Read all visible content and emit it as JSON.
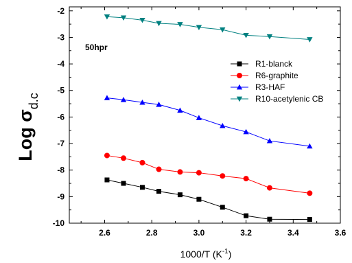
{
  "chart_data": {
    "type": "line",
    "title": "",
    "annotation": "50hpr",
    "xlabel": "1000/T (K",
    "xlabel_sup": "-1",
    "xlabel_close": ")",
    "ylabel": "Log σ",
    "ylabel_sub": "d.c",
    "xlim": [
      2.45,
      3.6
    ],
    "ylim": [
      -10,
      -1.85
    ],
    "x_ticks": [
      2.6,
      2.8,
      3.0,
      3.2,
      3.4,
      3.6
    ],
    "x_tick_labels": [
      "2.6",
      "2.8",
      "3.0",
      "3.2",
      "3.4",
      "3.6"
    ],
    "y_ticks": [
      -10,
      -9,
      -8,
      -7,
      -6,
      -5,
      -4,
      -3,
      -2
    ],
    "y_tick_labels": [
      "-10",
      "-9",
      "-8",
      "-7",
      "-6",
      "-5",
      "-4",
      "-3",
      "-2"
    ],
    "grid": false,
    "legend_position": "right",
    "x": [
      2.61,
      2.68,
      2.76,
      2.83,
      2.92,
      3.0,
      3.1,
      3.2,
      3.3,
      3.47
    ],
    "series": [
      {
        "name": "R1-blanck",
        "color": "#000000",
        "marker": "square",
        "values": [
          -8.37,
          -8.5,
          -8.65,
          -8.8,
          -8.93,
          -9.1,
          -9.4,
          -9.72,
          -9.85,
          -9.86
        ]
      },
      {
        "name": "R6-graphite",
        "color": "#ff0000",
        "marker": "circle",
        "values": [
          -7.45,
          -7.55,
          -7.72,
          -7.97,
          -8.07,
          -8.1,
          -8.22,
          -8.32,
          -8.67,
          -8.87
        ]
      },
      {
        "name": "R3-HAF",
        "color": "#0000ff",
        "marker": "triangle-up",
        "values": [
          -5.28,
          -5.35,
          -5.45,
          -5.53,
          -5.75,
          -6.03,
          -6.33,
          -6.56,
          -6.9,
          -7.1
        ]
      },
      {
        "name": "R10-acetylenic CB",
        "color": "#008080",
        "marker": "triangle-down",
        "values": [
          -2.22,
          -2.26,
          -2.35,
          -2.47,
          -2.51,
          -2.62,
          -2.71,
          -2.92,
          -2.97,
          -3.08
        ]
      }
    ]
  }
}
